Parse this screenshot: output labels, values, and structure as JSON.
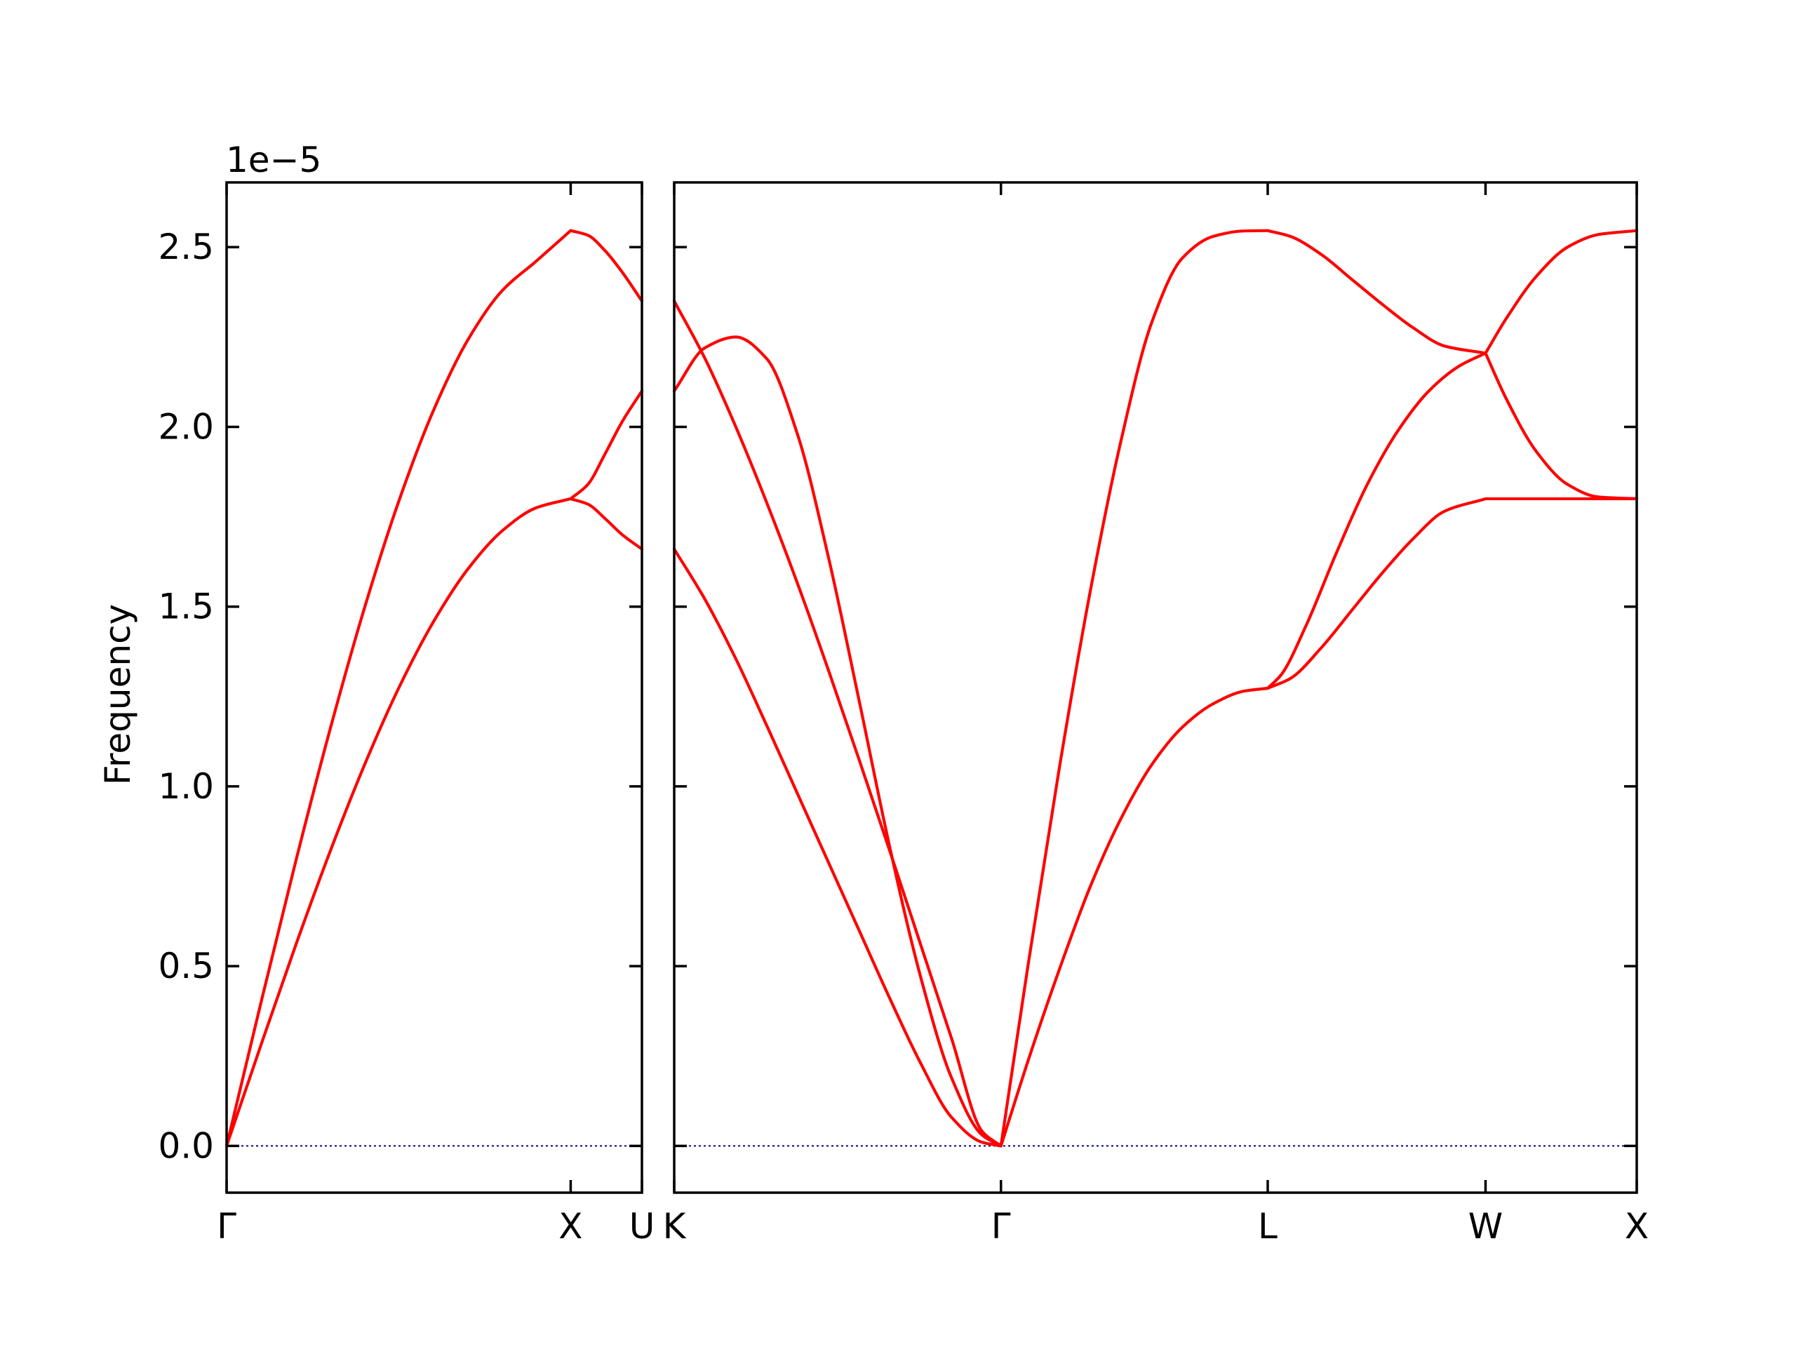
{
  "chart_data": {
    "type": "line",
    "title": "",
    "ylabel": "Frequency",
    "y_offset_label": "1e−5",
    "y_scale": 1e-05,
    "ylim": [
      -0.13,
      2.68
    ],
    "yticks": [
      0.0,
      0.5,
      1.0,
      1.5,
      2.0,
      2.5
    ],
    "ytick_labels": [
      "0.0",
      "0.5",
      "1.0",
      "1.5",
      "2.0",
      "2.5"
    ],
    "colors": {
      "band": "#ff0000",
      "zero_line": "#00008b",
      "axes": "#000000"
    },
    "panels": [
      {
        "name": "left",
        "xlim": [
          0.0,
          1.2071
        ],
        "xticks": [
          0.0,
          1.0,
          1.2071
        ],
        "xtick_labels": [
          "Γ",
          "X",
          "U"
        ],
        "segments": [
          {
            "range": [
              0.0,
              1.0
            ],
            "series": [
              {
                "x": [
                  0.0,
                  0.1,
                  0.2,
                  0.3,
                  0.4,
                  0.5,
                  0.6,
                  0.7,
                  0.8,
                  0.9,
                  1.0
                ],
                "y": [
                  0.0,
                  0.399,
                  0.788,
                  1.156,
                  1.494,
                  1.792,
                  2.043,
                  2.24,
                  2.378,
                  2.461,
                  2.546
                ]
              },
              {
                "x": [
                  0.0,
                  0.1,
                  0.2,
                  0.3,
                  0.4,
                  0.5,
                  0.6,
                  0.7,
                  0.8,
                  0.9,
                  1.0
                ],
                "y": [
                  0.0,
                  0.281,
                  0.556,
                  0.817,
                  1.058,
                  1.273,
                  1.456,
                  1.603,
                  1.71,
                  1.775,
                  1.8
                ]
              }
            ]
          },
          {
            "range": [
              1.0,
              1.2071
            ],
            "series": [
              {
                "x": [
                  1.0,
                  1.05,
                  1.1,
                  1.15,
                  1.2071
                ],
                "y": [
                  2.546,
                  2.533,
                  2.49,
                  2.43,
                  2.35
                ]
              },
              {
                "x": [
                  1.0,
                  1.05,
                  1.1,
                  1.15,
                  1.2071
                ],
                "y": [
                  1.8,
                  1.84,
                  1.925,
                  2.015,
                  2.1
                ]
              },
              {
                "x": [
                  1.0,
                  1.05,
                  1.1,
                  1.15,
                  1.2071
                ],
                "y": [
                  1.8,
                  1.785,
                  1.745,
                  1.7,
                  1.66
                ]
              }
            ]
          }
        ]
      },
      {
        "name": "right",
        "xlim": [
          0.0,
          3.1247
        ],
        "xticks": [
          0.0,
          1.0607,
          1.9267,
          2.6338,
          3.1247
        ],
        "xtick_labels": [
          "K",
          "Γ",
          "L",
          "W",
          "X"
        ],
        "segments": [
          {
            "range": [
              0.0,
              1.0607
            ],
            "series": [
              {
                "x": [
                  0.0,
                  0.1,
                  0.2,
                  0.3,
                  0.4,
                  0.5,
                  0.6,
                  0.7,
                  0.8,
                  0.9,
                  1.0,
                  1.0607
                ],
                "y": [
                  2.35,
                  2.19,
                  2.0,
                  1.79,
                  1.565,
                  1.325,
                  1.075,
                  0.82,
                  0.56,
                  0.3,
                  0.04,
                  0.0
                ]
              },
              {
                "x": [
                  0.0,
                  0.1,
                  0.2,
                  0.3,
                  0.4,
                  0.5,
                  0.6,
                  0.7,
                  0.8,
                  0.9,
                  1.0,
                  1.0607
                ],
                "y": [
                  2.1,
                  2.22,
                  2.25,
                  2.19,
                  1.98,
                  1.64,
                  1.24,
                  0.83,
                  0.47,
                  0.19,
                  0.03,
                  0.0
                ]
              },
              {
                "x": [
                  0.0,
                  0.1,
                  0.2,
                  0.3,
                  0.4,
                  0.5,
                  0.6,
                  0.7,
                  0.8,
                  0.9,
                  1.0,
                  1.0607
                ],
                "y": [
                  1.66,
                  1.52,
                  1.355,
                  1.17,
                  0.98,
                  0.79,
                  0.6,
                  0.41,
                  0.23,
                  0.08,
                  0.01,
                  0.0
                ]
              }
            ]
          },
          {
            "range": [
              1.0607,
              1.9267
            ],
            "series": [
              {
                "x": [
                  1.0607,
                  1.15,
                  1.25,
                  1.35,
                  1.45,
                  1.55,
                  1.65,
                  1.75,
                  1.85,
                  1.9267
                ],
                "y": [
                  0.0,
                  0.51,
                  1.05,
                  1.54,
                  1.96,
                  2.29,
                  2.47,
                  2.53,
                  2.545,
                  2.546
                ]
              },
              {
                "x": [
                  1.0607,
                  1.15,
                  1.25,
                  1.35,
                  1.45,
                  1.55,
                  1.65,
                  1.75,
                  1.85,
                  1.9267
                ],
                "y": [
                  0.0,
                  0.24,
                  0.49,
                  0.72,
                  0.91,
                  1.06,
                  1.165,
                  1.23,
                  1.265,
                  1.273
                ]
              }
            ]
          },
          {
            "range": [
              1.9267,
              2.6338
            ],
            "series": [
              {
                "x": [
                  1.9267,
                  2.0,
                  2.1,
                  2.2,
                  2.3,
                  2.4,
                  2.5,
                  2.6338
                ],
                "y": [
                  2.546,
                  2.53,
                  2.48,
                  2.41,
                  2.34,
                  2.275,
                  2.225,
                  2.205
                ]
              },
              {
                "x": [
                  1.9267,
                  1.97,
                  2.05,
                  2.15,
                  2.25,
                  2.35,
                  2.45,
                  2.55,
                  2.6338
                ],
                "y": [
                  1.273,
                  1.31,
                  1.445,
                  1.65,
                  1.84,
                  1.99,
                  2.1,
                  2.17,
                  2.205
                ]
              },
              {
                "x": [
                  1.9267,
                  2.0,
                  2.1,
                  2.2,
                  2.3,
                  2.4,
                  2.5,
                  2.6338
                ],
                "y": [
                  1.273,
                  1.3,
                  1.385,
                  1.49,
                  1.595,
                  1.69,
                  1.765,
                  1.8
                ]
              }
            ]
          },
          {
            "range": [
              2.6338,
              3.1247
            ],
            "series": [
              {
                "x": [
                  2.6338,
                  2.7,
                  2.8,
                  2.9,
                  3.0,
                  3.1247
                ],
                "y": [
                  2.205,
                  2.3,
                  2.42,
                  2.5,
                  2.535,
                  2.546
                ]
              },
              {
                "x": [
                  2.6338,
                  2.7,
                  2.8,
                  2.9,
                  3.0,
                  3.1247
                ],
                "y": [
                  2.205,
                  2.08,
                  1.93,
                  1.84,
                  1.805,
                  1.8
                ]
              },
              {
                "x": [
                  2.6338,
                  2.75,
                  2.9,
                  3.1247
                ],
                "y": [
                  1.8,
                  1.8,
                  1.8,
                  1.8
                ]
              }
            ]
          }
        ]
      }
    ]
  }
}
